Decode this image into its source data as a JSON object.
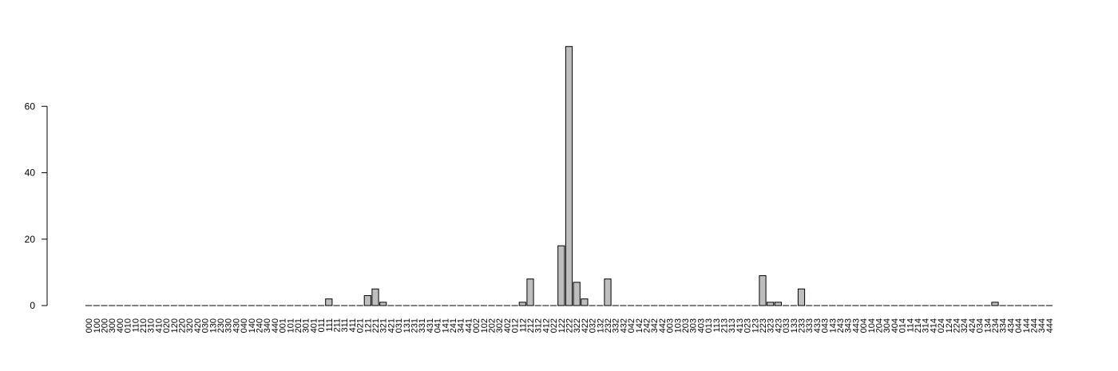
{
  "chart_data": {
    "type": "bar",
    "title": "",
    "xlabel": "",
    "ylabel": "",
    "ylim": [
      0,
      80
    ],
    "yticks": [
      0,
      20,
      40,
      60
    ],
    "grid": false,
    "legend": "none",
    "bar_fill": "#bebebe",
    "bar_stroke": "#000000",
    "categories": [
      "000",
      "100",
      "200",
      "300",
      "400",
      "010",
      "110",
      "210",
      "310",
      "410",
      "020",
      "120",
      "220",
      "320",
      "420",
      "030",
      "130",
      "230",
      "330",
      "430",
      "040",
      "140",
      "240",
      "340",
      "440",
      "001",
      "101",
      "201",
      "301",
      "401",
      "011",
      "111",
      "211",
      "311",
      "411",
      "021",
      "121",
      "221",
      "321",
      "421",
      "031",
      "131",
      "231",
      "331",
      "431",
      "041",
      "141",
      "241",
      "341",
      "441",
      "002",
      "102",
      "202",
      "302",
      "402",
      "012",
      "112",
      "212",
      "312",
      "412",
      "022",
      "122",
      "222",
      "322",
      "422",
      "032",
      "132",
      "232",
      "332",
      "432",
      "042",
      "142",
      "242",
      "342",
      "442",
      "003",
      "103",
      "203",
      "303",
      "403",
      "013",
      "113",
      "213",
      "313",
      "413",
      "023",
      "123",
      "223",
      "323",
      "423",
      "033",
      "133",
      "233",
      "333",
      "433",
      "043",
      "143",
      "243",
      "343",
      "443",
      "004",
      "104",
      "204",
      "304",
      "404",
      "014",
      "114",
      "214",
      "314",
      "414",
      "024",
      "124",
      "224",
      "324",
      "424",
      "034",
      "134",
      "234",
      "334",
      "434",
      "044",
      "144",
      "244",
      "344",
      "444"
    ],
    "values": [
      0,
      0,
      0,
      0,
      0,
      0,
      0,
      0,
      0,
      0,
      0,
      0,
      0,
      0,
      0,
      0,
      0,
      0,
      0,
      0,
      0,
      0,
      0,
      0,
      0,
      0,
      0,
      0,
      0,
      0,
      0,
      2,
      0,
      0,
      0,
      0,
      3,
      5,
      1,
      0,
      0,
      0,
      0,
      0,
      0,
      0,
      0,
      0,
      0,
      0,
      0,
      0,
      0,
      0,
      0,
      0,
      1,
      8,
      0,
      0,
      0,
      18,
      78,
      7,
      2,
      0,
      0,
      8,
      0,
      0,
      0,
      0,
      0,
      0,
      0,
      0,
      0,
      0,
      0,
      0,
      0,
      0,
      0,
      0,
      0,
      0,
      0,
      9,
      1,
      1,
      0,
      0,
      5,
      0,
      0,
      0,
      0,
      0,
      0,
      0,
      0,
      0,
      0,
      0,
      0,
      0,
      0,
      0,
      0,
      0,
      0,
      0,
      0,
      0,
      0,
      0,
      0,
      1,
      0,
      0,
      0,
      0,
      0,
      0,
      0
    ]
  }
}
